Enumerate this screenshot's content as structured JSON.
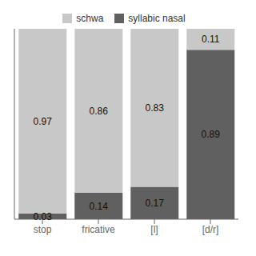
{
  "chart_data": {
    "type": "bar",
    "stacked": true,
    "categories": [
      "stop",
      "fricative",
      "[l]",
      "[d/r]"
    ],
    "series": [
      {
        "name": "syllabic nasal",
        "color": "#606060",
        "values": [
          0.03,
          0.14,
          0.17,
          0.89
        ]
      },
      {
        "name": "schwa",
        "color": "#c8c8c8",
        "values": [
          0.97,
          0.86,
          0.83,
          0.11
        ]
      }
    ],
    "ylim": [
      0,
      1.0
    ],
    "yticks": [],
    "grid": false,
    "data_labels": true,
    "tick_labels": "x"
  }
}
